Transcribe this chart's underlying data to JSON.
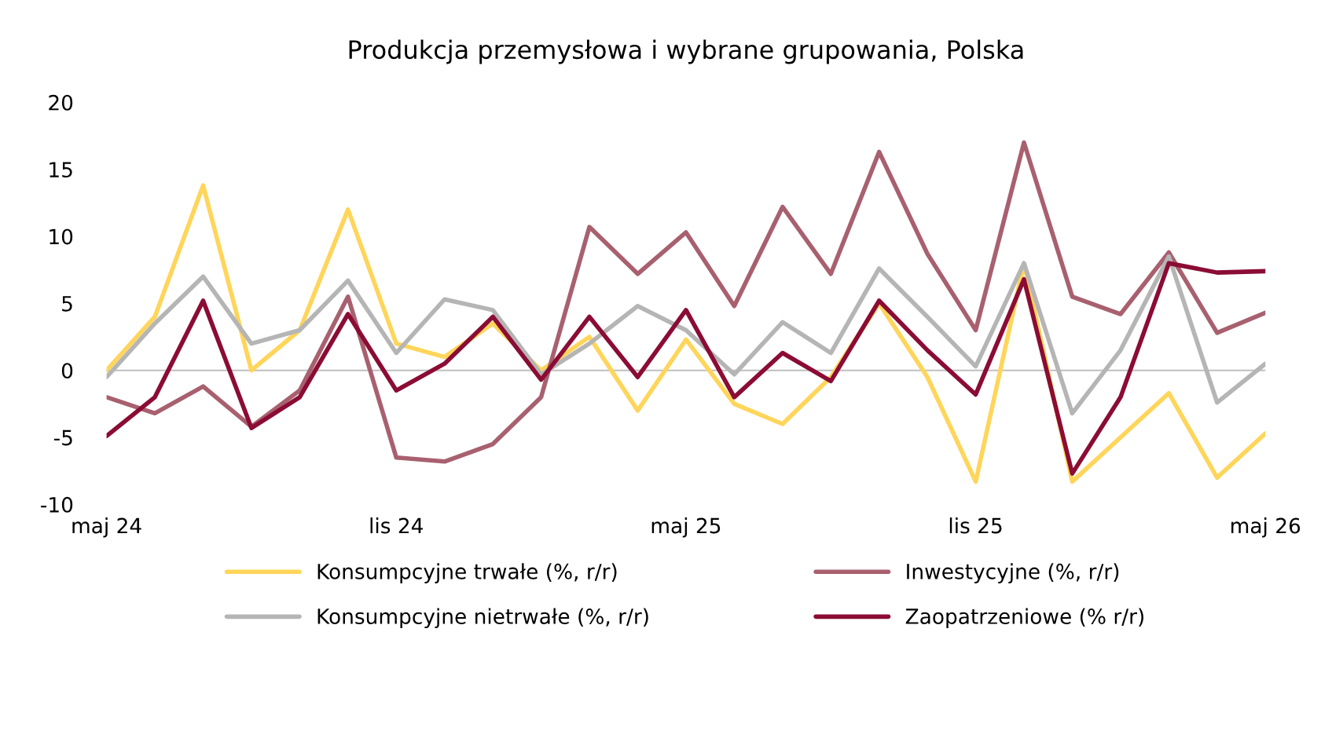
{
  "chart_data": {
    "type": "line",
    "title": "Produkcja przemysłowa i wybrane grupowania, Polska",
    "x": [
      "2024-05",
      "2024-06",
      "2024-07",
      "2024-08",
      "2024-09",
      "2024-10",
      "2024-11",
      "2024-12",
      "2025-01",
      "2025-02",
      "2025-03",
      "2025-04",
      "2025-05",
      "2025-06",
      "2025-07",
      "2025-08",
      "2025-09",
      "2025-10",
      "2025-11",
      "2025-12",
      "2026-01",
      "2026-02",
      "2026-03",
      "2026-04",
      "2026-05"
    ],
    "series": [
      {
        "name": "Konsumpcyjne trwałe (%, r/r)",
        "color": "#ffd55a",
        "values": [
          0,
          4,
          13.8,
          0,
          3,
          12,
          2,
          1,
          3.5,
          0,
          2.5,
          -3,
          2.3,
          -2.5,
          -4,
          -0.5,
          5,
          -0.5,
          -8.3,
          8,
          -8.3,
          -5,
          -1.7,
          -8,
          -4.7
        ]
      },
      {
        "name": "Inwestycyjne (%, r/r)",
        "color": "#a8606f",
        "values": [
          -2,
          -3.2,
          -1.2,
          -4.2,
          -1.5,
          5.5,
          -6.5,
          -6.8,
          -5.5,
          -2,
          10.7,
          7.2,
          10.3,
          4.8,
          12.2,
          7.2,
          16.3,
          8.7,
          3,
          17,
          5.5,
          4.2,
          8.8,
          2.8,
          4.3
        ]
      },
      {
        "name": "Konsumpcyjne nietrwałe (%, r/r)",
        "color": "#b5b5b5",
        "values": [
          -0.5,
          3.5,
          7,
          2,
          3,
          6.7,
          1.3,
          5.3,
          4.5,
          -0.3,
          2,
          4.8,
          3,
          -0.3,
          3.6,
          1.3,
          7.6,
          4,
          0.3,
          8,
          -3.2,
          1.5,
          8.5,
          -2.4,
          0.5
        ]
      },
      {
        "name": "Zaopatrzeniowe (% r/r)",
        "color": "#8b0c34",
        "values": [
          -4.9,
          -2,
          5.2,
          -4.3,
          -2,
          4.2,
          -1.5,
          0.5,
          4,
          -0.7,
          4,
          -0.5,
          4.5,
          -2,
          1.3,
          -0.8,
          5.2,
          1.5,
          -1.8,
          6.8,
          -7.7,
          -2,
          8,
          7.3,
          7.4
        ]
      }
    ],
    "xlim": [
      "2024-05",
      "2026-05"
    ],
    "xticks": [
      {
        "value": "2024-05",
        "label": "maj 24"
      },
      {
        "value": "2024-11",
        "label": "lis 24"
      },
      {
        "value": "2025-05",
        "label": "maj 25"
      },
      {
        "value": "2025-11",
        "label": "lis 25"
      },
      {
        "value": "2026-05",
        "label": "maj 26"
      }
    ],
    "ylim": [
      -10,
      20
    ],
    "yticks": [
      -10,
      -5,
      0,
      5,
      10,
      15,
      20
    ],
    "ref_lines": [
      {
        "axis": "y",
        "value": 0,
        "color": "#bfbfbf"
      }
    ],
    "grid": false,
    "legend": "bottom",
    "line_style": "solid",
    "marker": "none"
  }
}
